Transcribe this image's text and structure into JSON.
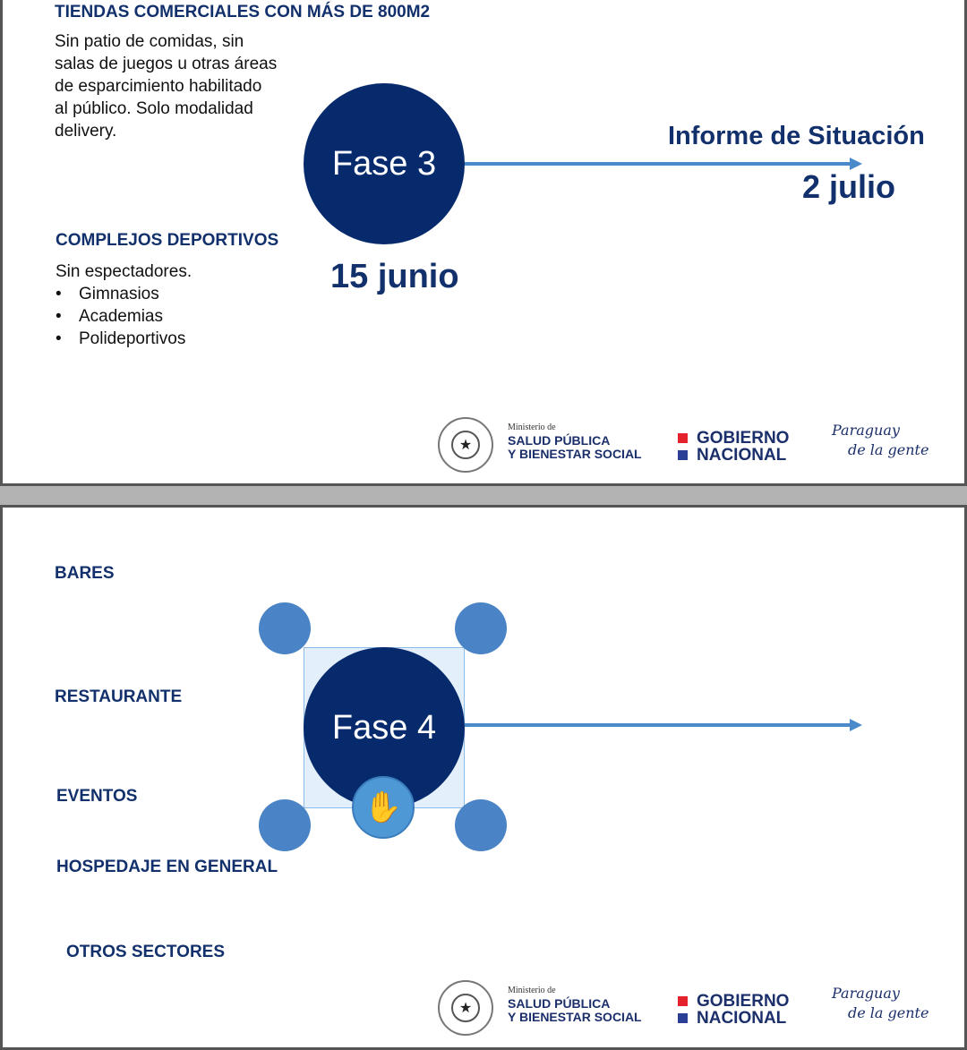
{
  "slide1": {
    "heading_tiendas": "TIENDAS COMERCIALES CON MÁS DE 800M2",
    "tiendas_text": [
      "Sin patio de comidas, sin",
      "salas de juegos u otras áreas",
      "de esparcimiento  habilitado",
      "al público. Solo modalidad",
      "delivery."
    ],
    "heading_complejos": "COMPLEJOS DEPORTIVOS",
    "complejos_text": "Sin espectadores.",
    "complejos_items": [
      "Gimnasios",
      "Academias",
      "Polideportivos"
    ],
    "phase": "Fase 3",
    "phase_date": "15 junio",
    "report_title": "Informe de Situación",
    "report_date": "2 julio"
  },
  "slide2": {
    "items": [
      "BARES",
      "RESTAURANTE",
      "EVENTOS",
      "HOSPEDAJE EN GENERAL",
      "OTROS SECTORES"
    ],
    "phase": "Fase 4"
  },
  "footer": {
    "ministerio_de": "Ministerio de",
    "salud_line1": "SALUD PÚBLICA",
    "salud_line2": "Y BIENESTAR SOCIAL",
    "gobierno": "GOBIERNO",
    "nacional": "NACIONAL",
    "paraguay": "Paraguay",
    "de_la_gente": "de la gente",
    "colors": {
      "red": "#e3222b",
      "blue": "#2a3f95"
    }
  },
  "colors": {
    "navy": "#062a6c",
    "accent": "#4a8acb"
  }
}
